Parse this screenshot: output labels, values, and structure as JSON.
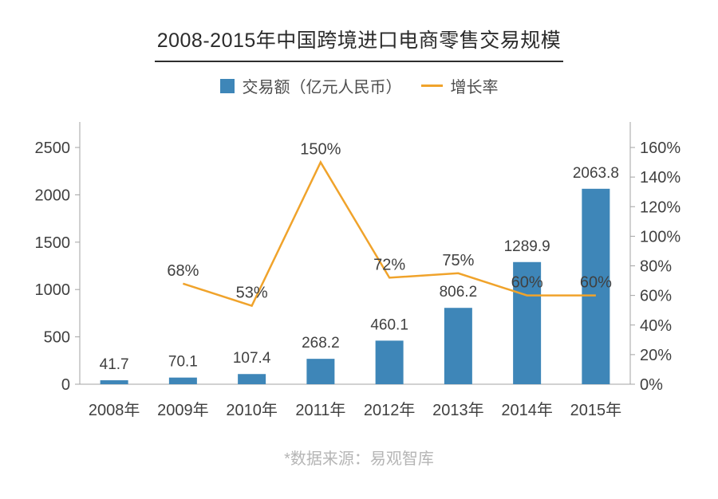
{
  "title": "2008-2015年中国跨境进口电商零售交易规模",
  "legend": {
    "bar_label": "交易额（亿元人民币）",
    "line_label": "增长率"
  },
  "source_note": "*数据来源：易观智库",
  "colors": {
    "bar": "#3e86b8",
    "line": "#f0a32b",
    "axis": "#a3a3a3",
    "label": "#404040",
    "title_underline": "#2e2e2e",
    "source_text": "#b5b5b5"
  },
  "chart_data": {
    "type": "bar+line",
    "title": "2008-2015年中国跨境进口电商零售交易规模",
    "categories": [
      "2008年",
      "2009年",
      "2010年",
      "2011年",
      "2012年",
      "2013年",
      "2014年",
      "2015年"
    ],
    "series": [
      {
        "name": "交易额（亿元人民币）",
        "type": "bar",
        "axis": "left",
        "color": "#3e86b8",
        "unit": "",
        "values": [
          41.7,
          70.1,
          107.4,
          268.2,
          460.1,
          806.2,
          1289.9,
          2063.8
        ]
      },
      {
        "name": "增长率",
        "type": "line",
        "axis": "right",
        "color": "#f0a32b",
        "unit": "%",
        "values": [
          null,
          68,
          53,
          150,
          72,
          75,
          60,
          60
        ]
      }
    ],
    "left_axis": {
      "min": 0,
      "max": 2500,
      "tick_step": 500,
      "tick_labels": [
        "0",
        "500",
        "1000",
        "1500",
        "2000",
        "2500"
      ]
    },
    "right_axis": {
      "min": 0,
      "max": 160,
      "tick_step": 20,
      "tick_labels": [
        "0%",
        "20%",
        "40%",
        "60%",
        "80%",
        "100%",
        "120%",
        "140%",
        "160%"
      ]
    },
    "grid": false,
    "legend_position": "top",
    "data_labels": true,
    "xlabel": "",
    "ylabel_left": "交易额（亿元人民币）",
    "ylabel_right": "增长率",
    "source": "*数据来源：易观智库"
  }
}
